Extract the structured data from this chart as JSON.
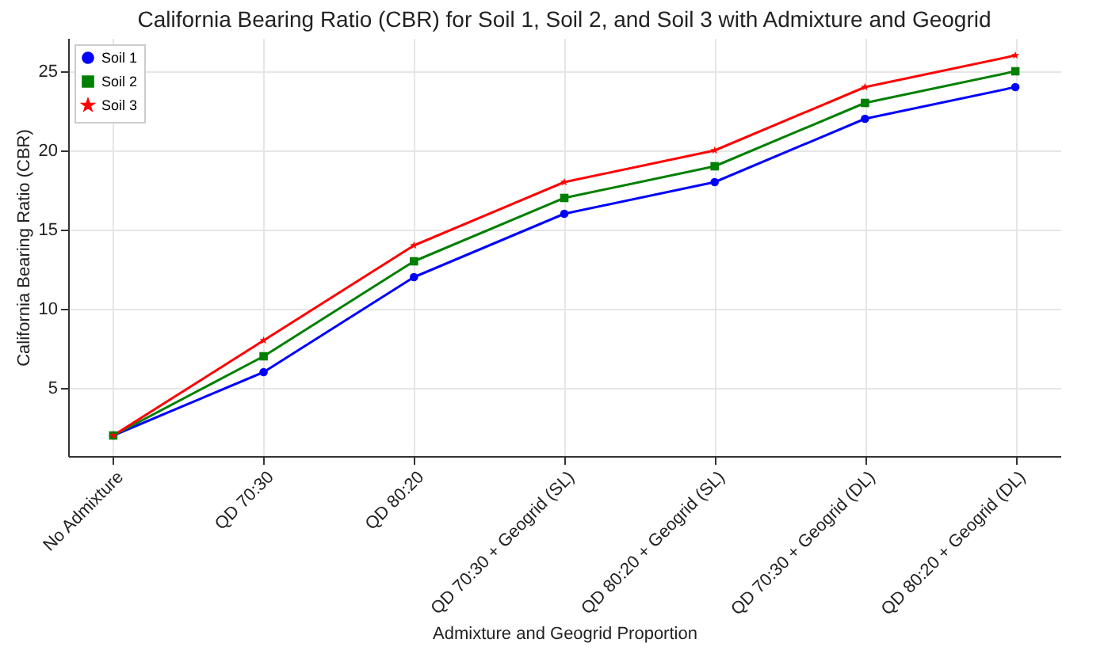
{
  "chart_data": {
    "type": "line",
    "title": "California Bearing Ratio (CBR) for Soil 1, Soil 2, and Soil 3 with Admixture and Geogrid",
    "xlabel": "Admixture and Geogrid Proportion",
    "ylabel": "California Bearing Ratio (CBR)",
    "categories": [
      "No Admixture",
      "QD 70:30",
      "QD 80:20",
      "QD 70:30 + Geogrid (SL)",
      "QD 80:20 + Geogrid (SL)",
      "QD 70:30 + Geogrid (DL)",
      "QD 80:20 + Geogrid (DL)"
    ],
    "series": [
      {
        "name": "Soil 1",
        "color": "#0000ff",
        "marker": "circle",
        "values": [
          2,
          6,
          12,
          16,
          18,
          22,
          24
        ]
      },
      {
        "name": "Soil 2",
        "color": "#008000",
        "marker": "square",
        "values": [
          2,
          7,
          13,
          17,
          19,
          23,
          25
        ]
      },
      {
        "name": "Soil 3",
        "color": "#ff0000",
        "marker": "star",
        "values": [
          2,
          8,
          14,
          18,
          20,
          24,
          26
        ]
      }
    ],
    "ylim": [
      0.7,
      27.1
    ],
    "yticks": [
      5,
      10,
      15,
      20,
      25
    ],
    "grid": true,
    "legend": "top left",
    "line_style": "solid"
  }
}
